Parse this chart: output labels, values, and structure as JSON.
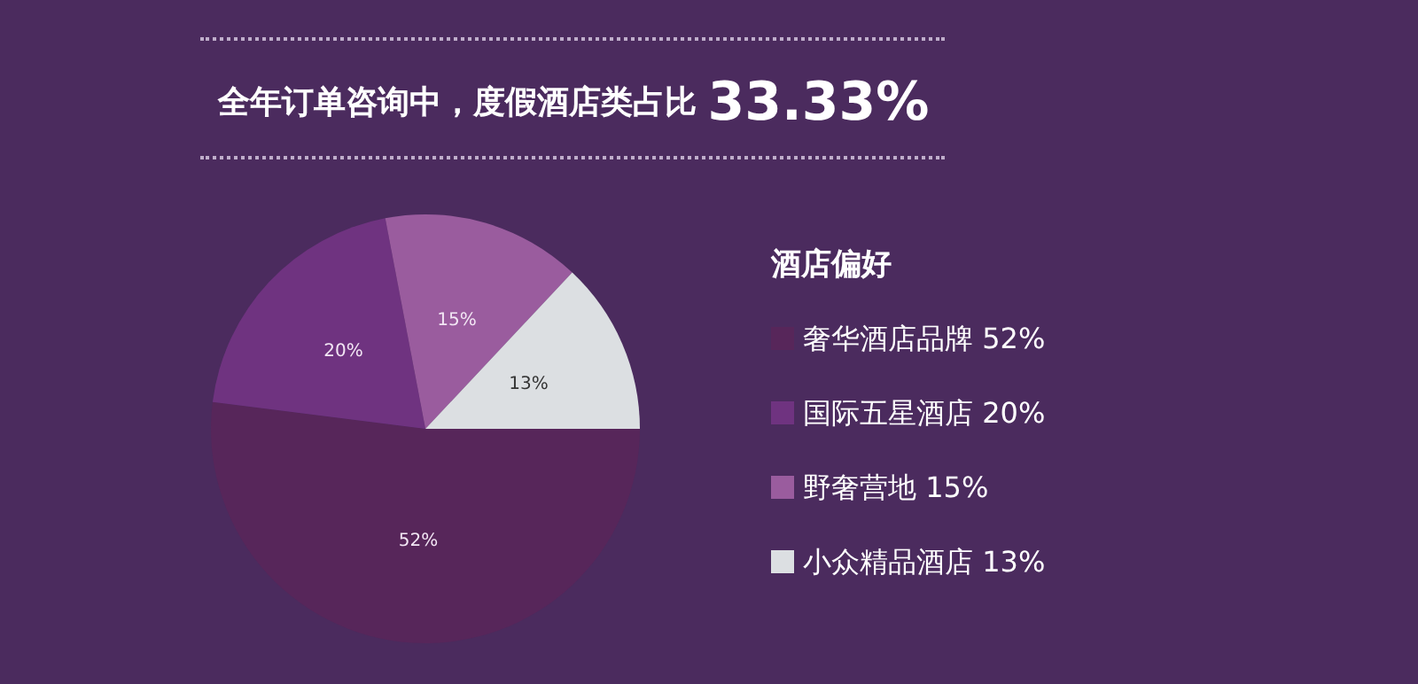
{
  "chart_data": {
    "type": "pie",
    "title": "全年订单咨询中，度假酒店类占比 33.33%",
    "legend_title": "酒店偏好",
    "categories": [
      "奢华酒店品牌 52%",
      "国际五星酒店 20%",
      "野奢营地 15%",
      "小众精品酒店 13%"
    ],
    "values": [
      52,
      20,
      15,
      13
    ],
    "value_labels": [
      "52%",
      "20%",
      "15%",
      "13%"
    ],
    "colors": [
      "#57265a",
      "#6f3380",
      "#9a5c9e",
      "#dcdfe2"
    ],
    "legend": "right"
  }
}
